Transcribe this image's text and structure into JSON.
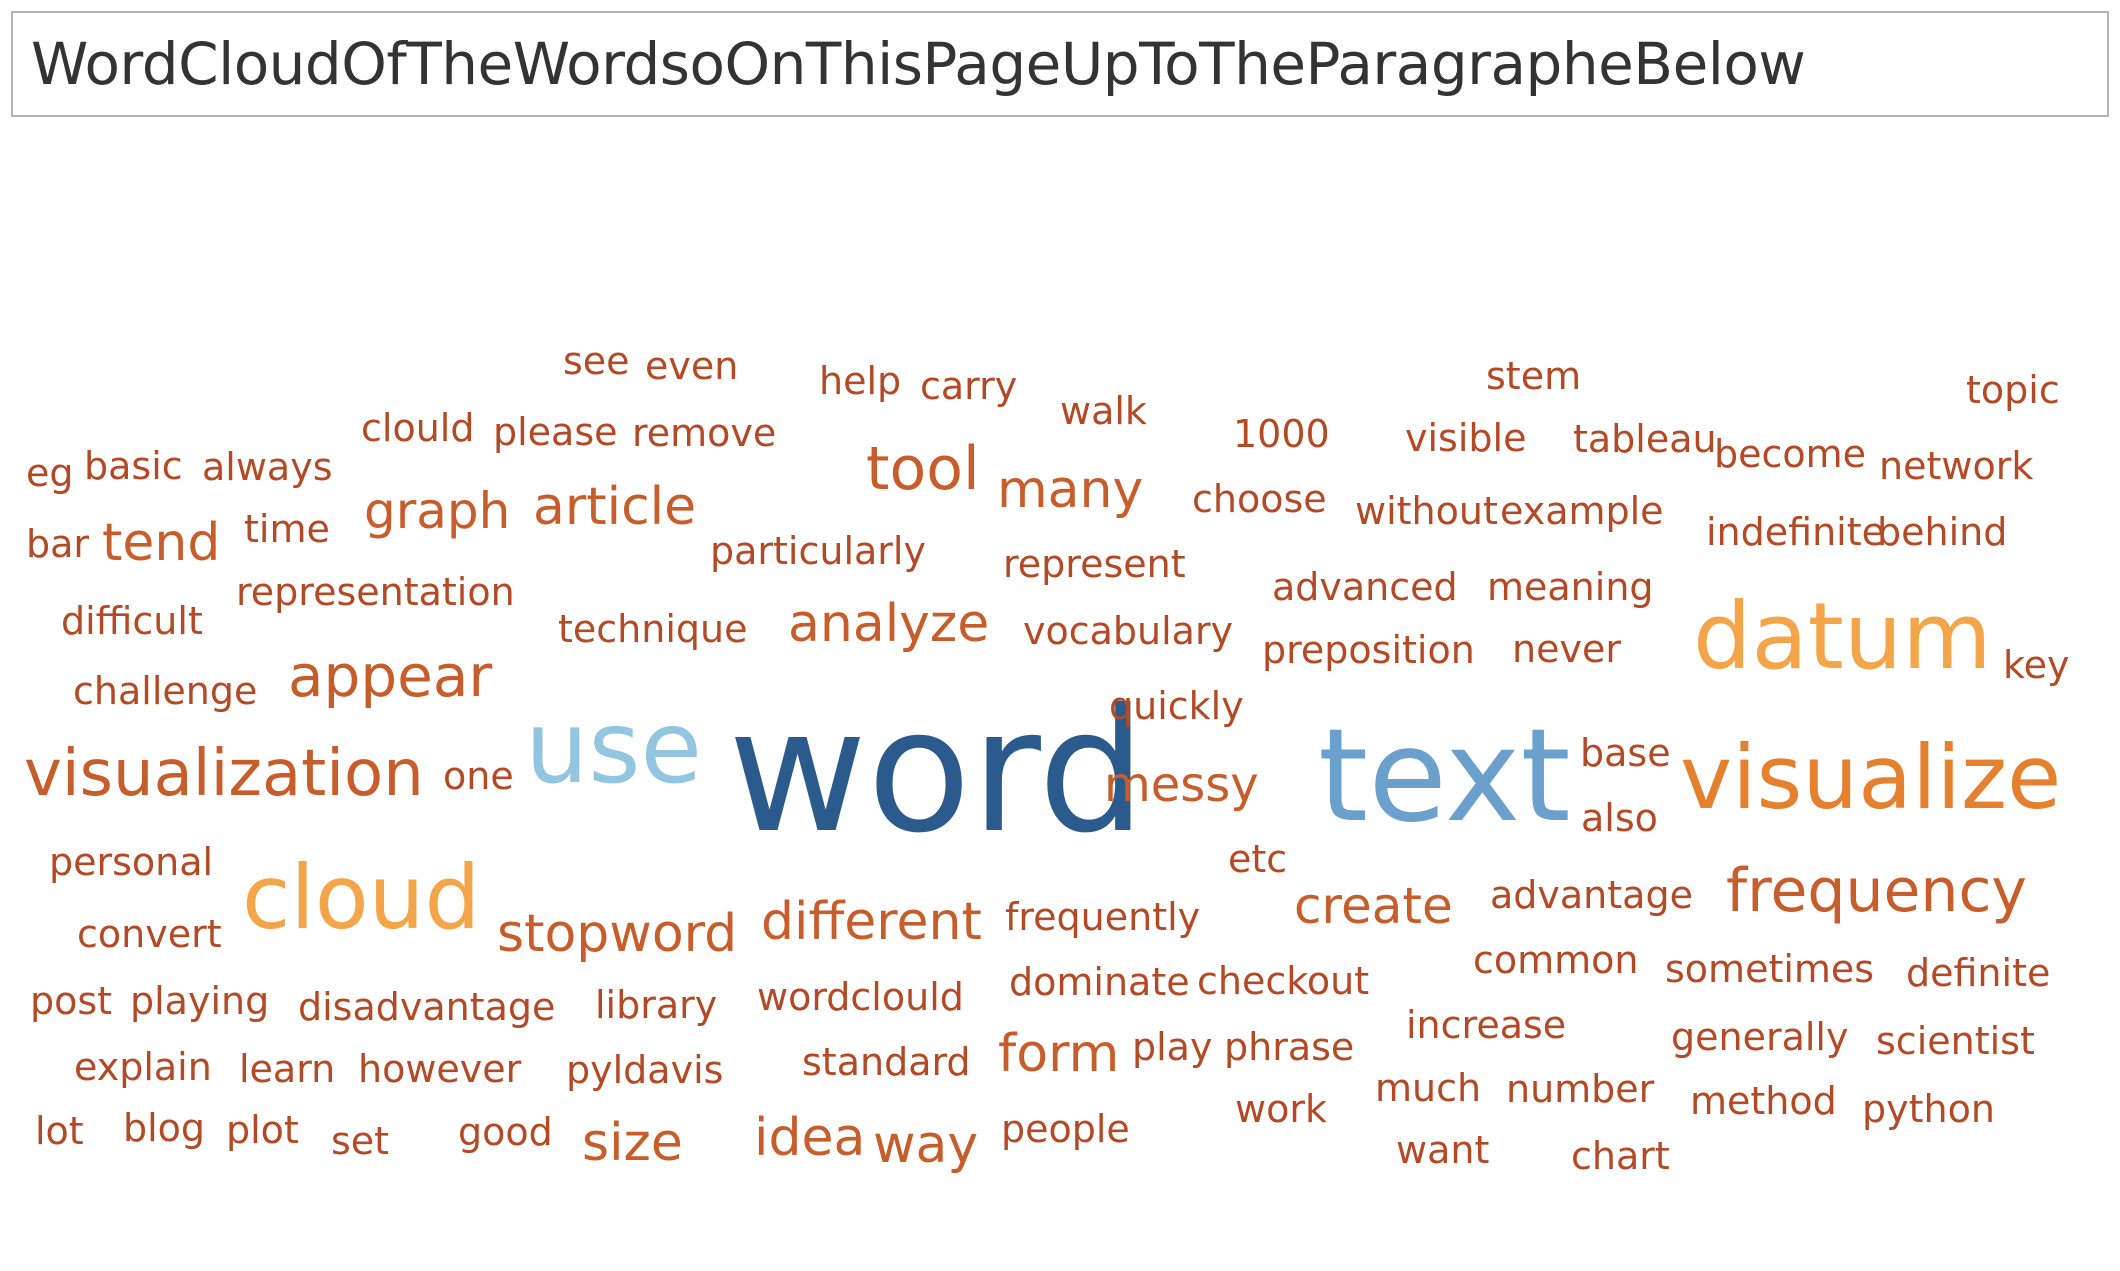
{
  "title": "WordCloudOfTheWordsoOnThisPageUpToTheParagrapheBelow",
  "palette": {
    "dark_blue": "#2b5b8c",
    "mid_blue": "#6b9fcc",
    "light_blue": "#92c5e0",
    "orange": "#f0963a",
    "orange_light": "#f4a549",
    "orange_mid": "#e5802f",
    "red_orange": "#c75d2a",
    "rust": "#b34a25",
    "rust_dark": "#a84322"
  },
  "chart_data": {
    "type": "wordcloud",
    "words": [
      {
        "text": "word",
        "weight": 100,
        "color": "#2b5b8c"
      },
      {
        "text": "text",
        "weight": 82,
        "color": "#6b9fcc"
      },
      {
        "text": "use",
        "weight": 62,
        "color": "#92c5e0"
      },
      {
        "text": "datum",
        "weight": 60,
        "color": "#f4a549"
      },
      {
        "text": "visualize",
        "weight": 58,
        "color": "#e5802f"
      },
      {
        "text": "cloud",
        "weight": 58,
        "color": "#f4a549"
      },
      {
        "text": "visualization",
        "weight": 40,
        "color": "#c75d2a"
      },
      {
        "text": "tool",
        "weight": 38,
        "color": "#c75d2a"
      },
      {
        "text": "frequency",
        "weight": 38,
        "color": "#c75d2a"
      },
      {
        "text": "appear",
        "weight": 36,
        "color": "#c75d2a"
      },
      {
        "text": "stopword",
        "weight": 34,
        "color": "#c75d2a"
      },
      {
        "text": "different",
        "weight": 34,
        "color": "#c75d2a"
      },
      {
        "text": "analyze",
        "weight": 33,
        "color": "#c75d2a"
      },
      {
        "text": "article",
        "weight": 33,
        "color": "#c75d2a"
      },
      {
        "text": "idea",
        "weight": 33,
        "color": "#c75d2a"
      },
      {
        "text": "many",
        "weight": 33,
        "color": "#c75d2a"
      },
      {
        "text": "graph",
        "weight": 32,
        "color": "#c75d2a"
      },
      {
        "text": "tend",
        "weight": 32,
        "color": "#c75d2a"
      },
      {
        "text": "size",
        "weight": 32,
        "color": "#c75d2a"
      },
      {
        "text": "form",
        "weight": 32,
        "color": "#c75d2a"
      },
      {
        "text": "create",
        "weight": 31,
        "color": "#c75d2a"
      },
      {
        "text": "way",
        "weight": 31,
        "color": "#c75d2a"
      },
      {
        "text": "messy",
        "weight": 30,
        "color": "#c75d2a"
      },
      {
        "text": "see",
        "weight": 24,
        "color": "#b34a25"
      },
      {
        "text": "even",
        "weight": 24,
        "color": "#b34a25"
      },
      {
        "text": "help",
        "weight": 24,
        "color": "#b34a25"
      },
      {
        "text": "carry",
        "weight": 24,
        "color": "#b34a25"
      },
      {
        "text": "walk",
        "weight": 24,
        "color": "#b34a25"
      },
      {
        "text": "stem",
        "weight": 24,
        "color": "#b34a25"
      },
      {
        "text": "topic",
        "weight": 24,
        "color": "#b34a25"
      },
      {
        "text": "clould",
        "weight": 24,
        "color": "#b34a25"
      },
      {
        "text": "please",
        "weight": 24,
        "color": "#b34a25"
      },
      {
        "text": "remove",
        "weight": 24,
        "color": "#b34a25"
      },
      {
        "text": "1000",
        "weight": 24,
        "color": "#b34a25"
      },
      {
        "text": "visible",
        "weight": 24,
        "color": "#b34a25"
      },
      {
        "text": "tableau",
        "weight": 24,
        "color": "#b34a25"
      },
      {
        "text": "become",
        "weight": 24,
        "color": "#b34a25"
      },
      {
        "text": "network",
        "weight": 24,
        "color": "#b34a25"
      },
      {
        "text": "eg",
        "weight": 24,
        "color": "#b34a25"
      },
      {
        "text": "basic",
        "weight": 24,
        "color": "#b34a25"
      },
      {
        "text": "always",
        "weight": 24,
        "color": "#b34a25"
      },
      {
        "text": "choose",
        "weight": 24,
        "color": "#b34a25"
      },
      {
        "text": "without",
        "weight": 24,
        "color": "#b34a25"
      },
      {
        "text": "example",
        "weight": 24,
        "color": "#b34a25"
      },
      {
        "text": "bar",
        "weight": 24,
        "color": "#b34a25"
      },
      {
        "text": "time",
        "weight": 24,
        "color": "#b34a25"
      },
      {
        "text": "indefinite",
        "weight": 24,
        "color": "#b34a25"
      },
      {
        "text": "behind",
        "weight": 24,
        "color": "#b34a25"
      },
      {
        "text": "particularly",
        "weight": 24,
        "color": "#b34a25"
      },
      {
        "text": "represent",
        "weight": 24,
        "color": "#b34a25"
      },
      {
        "text": "representation",
        "weight": 24,
        "color": "#b34a25"
      },
      {
        "text": "advanced",
        "weight": 24,
        "color": "#b34a25"
      },
      {
        "text": "meaning",
        "weight": 24,
        "color": "#b34a25"
      },
      {
        "text": "difficult",
        "weight": 24,
        "color": "#b34a25"
      },
      {
        "text": "technique",
        "weight": 24,
        "color": "#b34a25"
      },
      {
        "text": "vocabulary",
        "weight": 24,
        "color": "#b34a25"
      },
      {
        "text": "preposition",
        "weight": 24,
        "color": "#b34a25"
      },
      {
        "text": "never",
        "weight": 24,
        "color": "#b34a25"
      },
      {
        "text": "key",
        "weight": 24,
        "color": "#b34a25"
      },
      {
        "text": "challenge",
        "weight": 24,
        "color": "#b34a25"
      },
      {
        "text": "quickly",
        "weight": 24,
        "color": "#b34a25"
      },
      {
        "text": "base",
        "weight": 24,
        "color": "#b34a25"
      },
      {
        "text": "one",
        "weight": 24,
        "color": "#b34a25"
      },
      {
        "text": "also",
        "weight": 24,
        "color": "#b34a25"
      },
      {
        "text": "personal",
        "weight": 24,
        "color": "#b34a25"
      },
      {
        "text": "etc",
        "weight": 24,
        "color": "#b34a25"
      },
      {
        "text": "advantage",
        "weight": 24,
        "color": "#b34a25"
      },
      {
        "text": "convert",
        "weight": 24,
        "color": "#b34a25"
      },
      {
        "text": "frequently",
        "weight": 24,
        "color": "#b34a25"
      },
      {
        "text": "common",
        "weight": 24,
        "color": "#b34a25"
      },
      {
        "text": "sometimes",
        "weight": 24,
        "color": "#b34a25"
      },
      {
        "text": "definite",
        "weight": 24,
        "color": "#b34a25"
      },
      {
        "text": "post",
        "weight": 24,
        "color": "#b34a25"
      },
      {
        "text": "playing",
        "weight": 24,
        "color": "#b34a25"
      },
      {
        "text": "disadvantage",
        "weight": 24,
        "color": "#b34a25"
      },
      {
        "text": "library",
        "weight": 24,
        "color": "#b34a25"
      },
      {
        "text": "wordclould",
        "weight": 24,
        "color": "#b34a25"
      },
      {
        "text": "dominate",
        "weight": 24,
        "color": "#b34a25"
      },
      {
        "text": "checkout",
        "weight": 24,
        "color": "#b34a25"
      },
      {
        "text": "increase",
        "weight": 24,
        "color": "#b34a25"
      },
      {
        "text": "generally",
        "weight": 24,
        "color": "#b34a25"
      },
      {
        "text": "scientist",
        "weight": 24,
        "color": "#b34a25"
      },
      {
        "text": "explain",
        "weight": 24,
        "color": "#b34a25"
      },
      {
        "text": "learn",
        "weight": 24,
        "color": "#b34a25"
      },
      {
        "text": "however",
        "weight": 24,
        "color": "#b34a25"
      },
      {
        "text": "pyldavis",
        "weight": 24,
        "color": "#b34a25"
      },
      {
        "text": "standard",
        "weight": 24,
        "color": "#b34a25"
      },
      {
        "text": "play",
        "weight": 24,
        "color": "#b34a25"
      },
      {
        "text": "phrase",
        "weight": 24,
        "color": "#b34a25"
      },
      {
        "text": "much",
        "weight": 24,
        "color": "#b34a25"
      },
      {
        "text": "number",
        "weight": 24,
        "color": "#b34a25"
      },
      {
        "text": "method",
        "weight": 24,
        "color": "#b34a25"
      },
      {
        "text": "python",
        "weight": 24,
        "color": "#b34a25"
      },
      {
        "text": "lot",
        "weight": 24,
        "color": "#b34a25"
      },
      {
        "text": "blog",
        "weight": 24,
        "color": "#b34a25"
      },
      {
        "text": "plot",
        "weight": 24,
        "color": "#b34a25"
      },
      {
        "text": "set",
        "weight": 24,
        "color": "#b34a25"
      },
      {
        "text": "good",
        "weight": 24,
        "color": "#b34a25"
      },
      {
        "text": "people",
        "weight": 24,
        "color": "#b34a25"
      },
      {
        "text": "work",
        "weight": 24,
        "color": "#b34a25"
      },
      {
        "text": "want",
        "weight": 24,
        "color": "#b34a25"
      },
      {
        "text": "chart",
        "weight": 24,
        "color": "#b34a25"
      }
    ]
  }
}
